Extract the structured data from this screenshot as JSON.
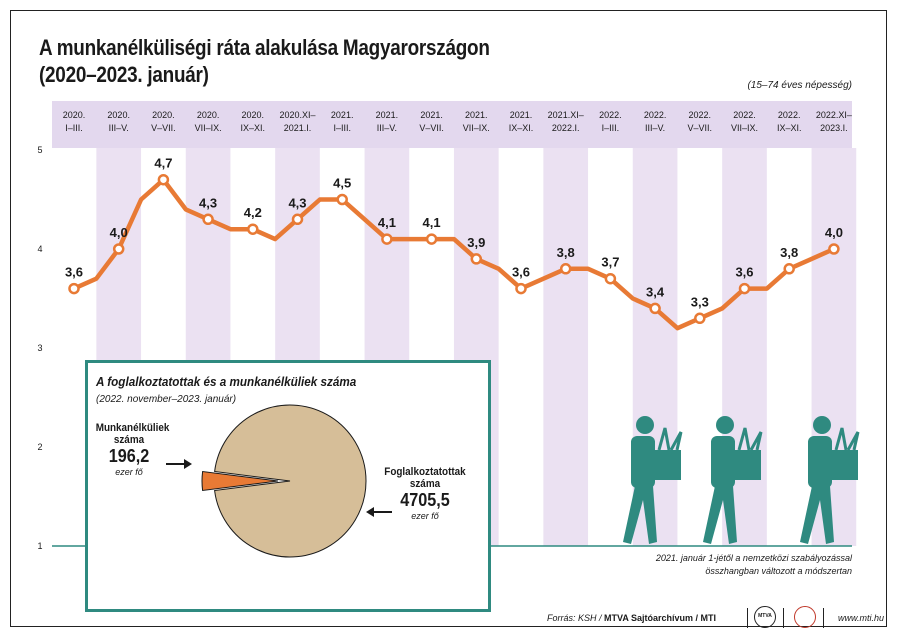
{
  "header": {
    "title_line1": "A munkanélküliségi ráta alakulása Magyarországon",
    "title_line2": "(2020–2023. január)",
    "subtitle": "(15–74 éves népesség)"
  },
  "chart_data": [
    {
      "type": "line",
      "title": "A munkanélküliségi ráta alakulása Magyarországon (2020–2023. január)",
      "subtitle": "(15–74 éves népesség)",
      "period_labels": [
        [
          "2020.",
          "I–III."
        ],
        [
          "2020.",
          "III–V."
        ],
        [
          "2020.",
          "V–VII."
        ],
        [
          "2020.",
          "VII–IX."
        ],
        [
          "2020.",
          "IX–XI."
        ],
        [
          "2020.XI–",
          "2021.I."
        ],
        [
          "2021.",
          "I–III."
        ],
        [
          "2021.",
          "III–V."
        ],
        [
          "2021.",
          "V–VII."
        ],
        [
          "2021.",
          "VII–IX."
        ],
        [
          "2021.",
          "IX–XI."
        ],
        [
          "2021.XI–",
          "2022.I."
        ],
        [
          "2022.",
          "I–III."
        ],
        [
          "2022.",
          "III–V."
        ],
        [
          "2022.",
          "V–VII."
        ],
        [
          "2022.",
          "VII–IX."
        ],
        [
          "2022.",
          "IX–XI."
        ],
        [
          "2022.XI–",
          "2023.I."
        ]
      ],
      "x": [
        0,
        0.5,
        1,
        1.5,
        2,
        2.5,
        3,
        3.5,
        4,
        4.5,
        5,
        5.5,
        6,
        6.5,
        7,
        7.5,
        8,
        8.5,
        9,
        9.5,
        10,
        10.5,
        11,
        11.5,
        12,
        12.5,
        13,
        13.5,
        14,
        14.5,
        15,
        15.5,
        16,
        16.5,
        17
      ],
      "values": [
        3.6,
        3.7,
        4.0,
        4.5,
        4.7,
        4.4,
        4.3,
        4.2,
        4.2,
        4.1,
        4.3,
        4.5,
        4.5,
        4.3,
        4.1,
        4.1,
        4.1,
        4.1,
        3.9,
        3.8,
        3.6,
        3.7,
        3.8,
        3.8,
        3.7,
        3.5,
        3.4,
        3.2,
        3.3,
        3.4,
        3.6,
        3.6,
        3.8,
        3.9,
        4.0
      ],
      "labeled_values": [
        "3,6",
        "4,0",
        "4,7",
        "4,3",
        "4,2",
        "4,3",
        "4,5",
        "4,1",
        "4,1",
        "3,9",
        "3,6",
        "3,8",
        "3,7",
        "3,4",
        "3,3",
        "3,6",
        "3,8",
        "4,0"
      ],
      "y_ticks": [
        "1",
        "2",
        "3",
        "4",
        "5"
      ],
      "ylim": [
        1,
        5
      ],
      "grid": false,
      "line_color": "#e87a35",
      "band_color": "#ebe1f2",
      "header_color": "#e3d8ee"
    },
    {
      "type": "pie",
      "title": "A foglalkoztatottak és a munkanélküliek száma",
      "subtitle": "(2022. november–2023. január)",
      "slices": [
        {
          "name_line1": "Munkanélküliek",
          "name_line2": "száma",
          "value": 196.2,
          "value_text": "196,2",
          "unit": "ezer fő",
          "color": "#e87a35"
        },
        {
          "name_line1": "Foglalkoztatottak",
          "name_line2": "száma",
          "value": 4705.5,
          "value_text": "4705,5",
          "unit": "ezer fő",
          "color": "#d6be98"
        }
      ]
    }
  ],
  "footnote": {
    "line1": "2021. január 1-jétől a nemzetközi szabályozással",
    "line2": "összhangban változott a módszertan"
  },
  "footer": {
    "source_prefix": "Forrás: KSH / ",
    "source_bold": "MTVA Sajtóarchívum / MTI",
    "logo1": "MTVA",
    "site": "www.mti.hu"
  },
  "colors": {
    "accent_teal": "#2f8a80",
    "figure_teal": "#2f8a80"
  }
}
